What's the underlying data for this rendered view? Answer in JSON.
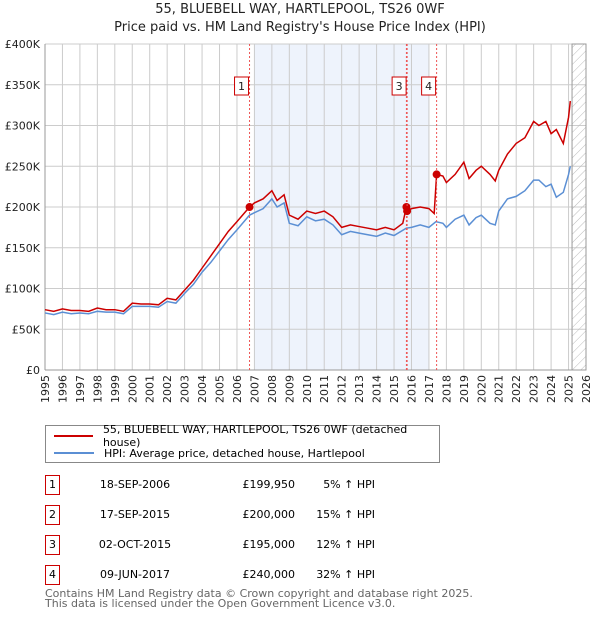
{
  "chart_data": {
    "type": "line",
    "title": "55, BLUEBELL WAY, HARTLEPOOL, TS26 0WF",
    "subtitle": "Price paid vs. HM Land Registry's House Price Index (HPI)",
    "xlim": [
      1995,
      2026
    ],
    "ylim": [
      0,
      400000
    ],
    "x_ticks": [
      "1995",
      "1996",
      "1997",
      "1998",
      "1999",
      "2000",
      "2001",
      "2002",
      "2003",
      "2004",
      "2005",
      "2006",
      "2007",
      "2008",
      "2009",
      "2010",
      "2011",
      "2012",
      "2013",
      "2014",
      "2015",
      "2016",
      "2017",
      "2018",
      "2019",
      "2020",
      "2021",
      "2022",
      "2023",
      "2024",
      "2025",
      "2026"
    ],
    "y_ticks": [
      {
        "v": 0,
        "label": "£0"
      },
      {
        "v": 50000,
        "label": "£50K"
      },
      {
        "v": 100000,
        "label": "£100K"
      },
      {
        "v": 150000,
        "label": "£150K"
      },
      {
        "v": 200000,
        "label": "£200K"
      },
      {
        "v": 250000,
        "label": "£250K"
      },
      {
        "v": 300000,
        "label": "£300K"
      },
      {
        "v": 350000,
        "label": "£350K"
      },
      {
        "v": 400000,
        "label": "£400K"
      }
    ],
    "grid": true,
    "series": [
      {
        "name": "55, BLUEBELL WAY, HARTLEPOOL, TS26 0WF (detached house)",
        "color": "#cc0000",
        "x": [
          1995,
          1995.5,
          1996,
          1996.5,
          1997,
          1997.5,
          1998,
          1998.5,
          1999,
          1999.5,
          2000,
          2000.5,
          2001,
          2001.5,
          2002,
          2002.5,
          2003,
          2003.5,
          2004,
          2004.5,
          2005,
          2005.5,
          2006,
          2006.72,
          2007,
          2007.5,
          2008,
          2008.3,
          2008.7,
          2009,
          2009.5,
          2010,
          2010.5,
          2011,
          2011.5,
          2012,
          2012.5,
          2013,
          2013.5,
          2014,
          2014.5,
          2015,
          2015.5,
          2015.71,
          2015.75,
          2016,
          2016.5,
          2017,
          2017.3,
          2017.44,
          2017.8,
          2018,
          2018.5,
          2019,
          2019.3,
          2019.7,
          2020,
          2020.5,
          2020.8,
          2021,
          2021.5,
          2022,
          2022.5,
          2023,
          2023.3,
          2023.7,
          2024,
          2024.3,
          2024.7,
          2025,
          2025.1
        ],
        "y": [
          74000,
          72000,
          75000,
          73000,
          73000,
          72000,
          76000,
          74000,
          74000,
          72000,
          82000,
          81000,
          81000,
          80000,
          88000,
          86000,
          98000,
          110000,
          125000,
          140000,
          155000,
          170000,
          182000,
          199950,
          205000,
          210000,
          220000,
          208000,
          215000,
          190000,
          185000,
          195000,
          192000,
          195000,
          188000,
          175000,
          178000,
          176000,
          174000,
          172000,
          175000,
          172000,
          180000,
          200000,
          195000,
          198000,
          200000,
          198000,
          192000,
          240000,
          238000,
          230000,
          240000,
          255000,
          235000,
          245000,
          250000,
          240000,
          232000,
          245000,
          265000,
          278000,
          285000,
          305000,
          300000,
          305000,
          290000,
          295000,
          278000,
          310000,
          330000
        ]
      },
      {
        "name": "HPI: Average price, detached house, Hartlepool",
        "color": "#5b8fd4",
        "x": [
          1995,
          1995.5,
          1996,
          1996.5,
          1997,
          1997.5,
          1998,
          1998.5,
          1999,
          1999.5,
          2000,
          2000.5,
          2001,
          2001.5,
          2002,
          2002.5,
          2003,
          2003.5,
          2004,
          2004.5,
          2005,
          2005.5,
          2006,
          2006.72,
          2007,
          2007.5,
          2008,
          2008.3,
          2008.7,
          2009,
          2009.5,
          2010,
          2010.5,
          2011,
          2011.5,
          2012,
          2012.5,
          2013,
          2013.5,
          2014,
          2014.5,
          2015,
          2015.7,
          2016,
          2016.5,
          2017,
          2017.4,
          2017.8,
          2018,
          2018.5,
          2019,
          2019.3,
          2019.7,
          2020,
          2020.5,
          2020.8,
          2021,
          2021.5,
          2022,
          2022.5,
          2023,
          2023.3,
          2023.7,
          2024,
          2024.3,
          2024.7,
          2025,
          2025.1
        ],
        "y": [
          70000,
          68000,
          71000,
          69000,
          70000,
          69000,
          72000,
          71000,
          71000,
          69000,
          78000,
          78000,
          78000,
          77000,
          84000,
          82000,
          94000,
          105000,
          120000,
          132000,
          146000,
          160000,
          172000,
          190000,
          193000,
          198000,
          210000,
          200000,
          205000,
          180000,
          177000,
          188000,
          183000,
          185000,
          178000,
          166000,
          170000,
          168000,
          166000,
          164000,
          168000,
          165000,
          174000,
          175000,
          178000,
          175000,
          182000,
          180000,
          175000,
          185000,
          190000,
          178000,
          187000,
          190000,
          180000,
          178000,
          195000,
          210000,
          213000,
          220000,
          233000,
          233000,
          225000,
          228000,
          212000,
          218000,
          240000,
          250000
        ]
      }
    ],
    "sales": [
      {
        "label": "1",
        "x": 2006.72,
        "y": 199950,
        "boxed": true
      },
      {
        "label": "2",
        "x": 2015.71,
        "y": 200000,
        "boxed": false
      },
      {
        "label": "3",
        "x": 2015.75,
        "y": 195000,
        "boxed": true
      },
      {
        "label": "4",
        "x": 2017.44,
        "y": 240000,
        "boxed": true
      }
    ],
    "shaded_range": [
      2007.0,
      2017.0
    ],
    "forecast_hatch_from": 2025.2,
    "legend_position": "below"
  },
  "table": [
    {
      "num": "1",
      "date": "18-SEP-2006",
      "price": "£199,950",
      "hpi": "5% ↑ HPI"
    },
    {
      "num": "2",
      "date": "17-SEP-2015",
      "price": "£200,000",
      "hpi": "15% ↑ HPI"
    },
    {
      "num": "3",
      "date": "02-OCT-2015",
      "price": "£195,000",
      "hpi": "12% ↑ HPI"
    },
    {
      "num": "4",
      "date": "09-JUN-2017",
      "price": "£240,000",
      "hpi": "32% ↑ HPI"
    }
  ],
  "footer": {
    "line1": "Contains HM Land Registry data © Crown copyright and database right 2025.",
    "line2": "This data is licensed under the Open Government Licence v3.0."
  }
}
